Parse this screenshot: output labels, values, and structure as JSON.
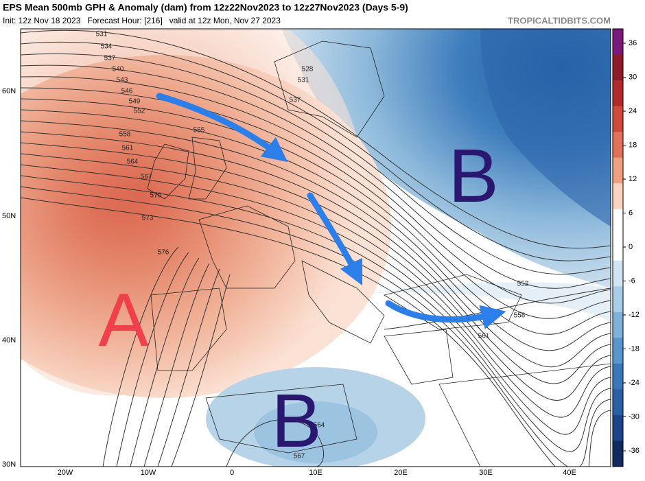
{
  "header": {
    "title": "EPS Mean 500mb GPH & Anomaly (dam) from 12z22Nov2023 to 12z27Nov2023 (Days 5-9)",
    "subtitle": "Init: 12z Nov 18 2023   Forecast Hour: [216]   valid at 12z Mon, Nov 27 2023",
    "source": "TROPICALTIDBITS.COM"
  },
  "map": {
    "lat_labels": [
      "60N",
      "50N",
      "40N",
      "30N"
    ],
    "lon_labels": [
      "20W",
      "10W",
      "0",
      "10E",
      "20E",
      "30E",
      "40E"
    ],
    "contour_labels": [
      531,
      534,
      537,
      540,
      543,
      546,
      549,
      552,
      555,
      558,
      561,
      564,
      567,
      570,
      573,
      576,
      528,
      531,
      537,
      552,
      558,
      561,
      564,
      567
    ],
    "annotations": [
      "A",
      "B",
      "B"
    ]
  },
  "colorbar": {
    "ticks": [
      36,
      30,
      24,
      18,
      12,
      6,
      0,
      -6,
      -12,
      -18,
      -24,
      -30,
      -36
    ]
  }
}
